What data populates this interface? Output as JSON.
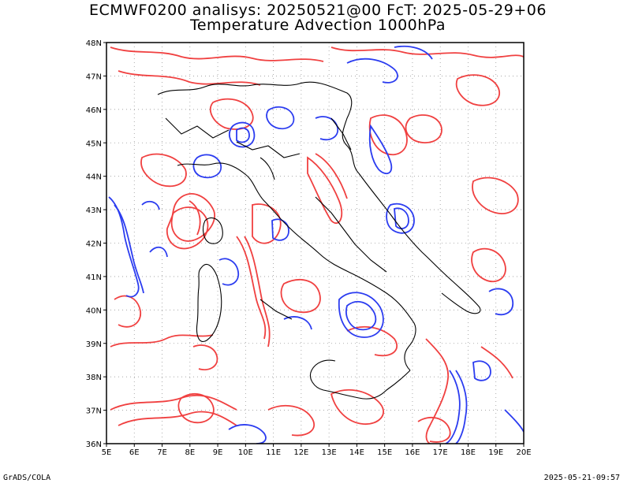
{
  "title_line1": "ECMWF0200 analisys: 20250521@00 FcT: 2025-05-29+06",
  "title_line2": "Temperature Advection 1000hPa",
  "footer_left": "GrADS/COLA",
  "footer_right": "2025-05-21-09:57",
  "map": {
    "lon_range": [
      5,
      20
    ],
    "lat_range": [
      36,
      48
    ],
    "x_ticks": [
      "5E",
      "6E",
      "7E",
      "8E",
      "9E",
      "10E",
      "11E",
      "12E",
      "13E",
      "14E",
      "15E",
      "16E",
      "17E",
      "18E",
      "19E",
      "20E"
    ],
    "y_ticks": [
      "36N",
      "37N",
      "38N",
      "39N",
      "40N",
      "41N",
      "42N",
      "43N",
      "44N",
      "45N",
      "46N",
      "47N",
      "48N"
    ],
    "grid": "dotted",
    "colors": {
      "positive_contour": "#f04040",
      "negative_contour": "#2b3cf0",
      "coastline": "#000000",
      "grid": "#999999"
    }
  }
}
